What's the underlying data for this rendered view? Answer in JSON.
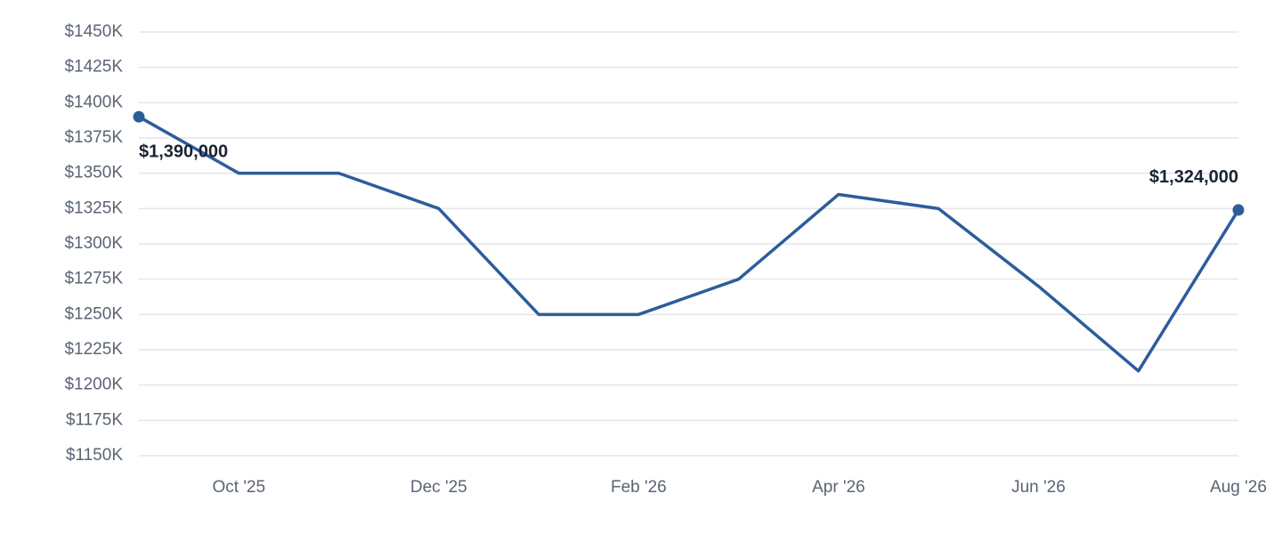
{
  "chart_data": {
    "type": "line",
    "categories": [
      null,
      "Oct '25",
      null,
      "Dec '25",
      null,
      "Feb '26",
      null,
      "Apr '26",
      null,
      "Jun '26",
      null,
      "Aug '26"
    ],
    "series": [
      {
        "color": "#2c5d9b",
        "values": [
          1390000,
          1350000,
          1350000,
          1325000,
          1250000,
          1250000,
          1275000,
          1335000,
          1325000,
          1270000,
          1210000,
          1324000
        ],
        "value_labels": [
          "$1,390,000",
          null,
          null,
          null,
          null,
          null,
          null,
          null,
          null,
          null,
          null,
          "$1,324,000"
        ]
      }
    ],
    "ylim": [
      1150000,
      1450000
    ],
    "yticks": [
      {
        "value": 1150000,
        "label": "$1150K"
      },
      {
        "value": 1175000,
        "label": "$1175K"
      },
      {
        "value": 1200000,
        "label": "$1200K"
      },
      {
        "value": 1225000,
        "label": "$1225K"
      },
      {
        "value": 1250000,
        "label": "$1250K"
      },
      {
        "value": 1275000,
        "label": "$1275K"
      },
      {
        "value": 1300000,
        "label": "$1300K"
      },
      {
        "value": 1325000,
        "label": "$1325K"
      },
      {
        "value": 1350000,
        "label": "$1350K"
      },
      {
        "value": 1375000,
        "label": "$1375K"
      },
      {
        "value": 1400000,
        "label": "$1400K"
      },
      {
        "value": 1425000,
        "label": "$1425K"
      },
      {
        "value": 1450000,
        "label": "$1450K"
      }
    ],
    "grid": true
  }
}
